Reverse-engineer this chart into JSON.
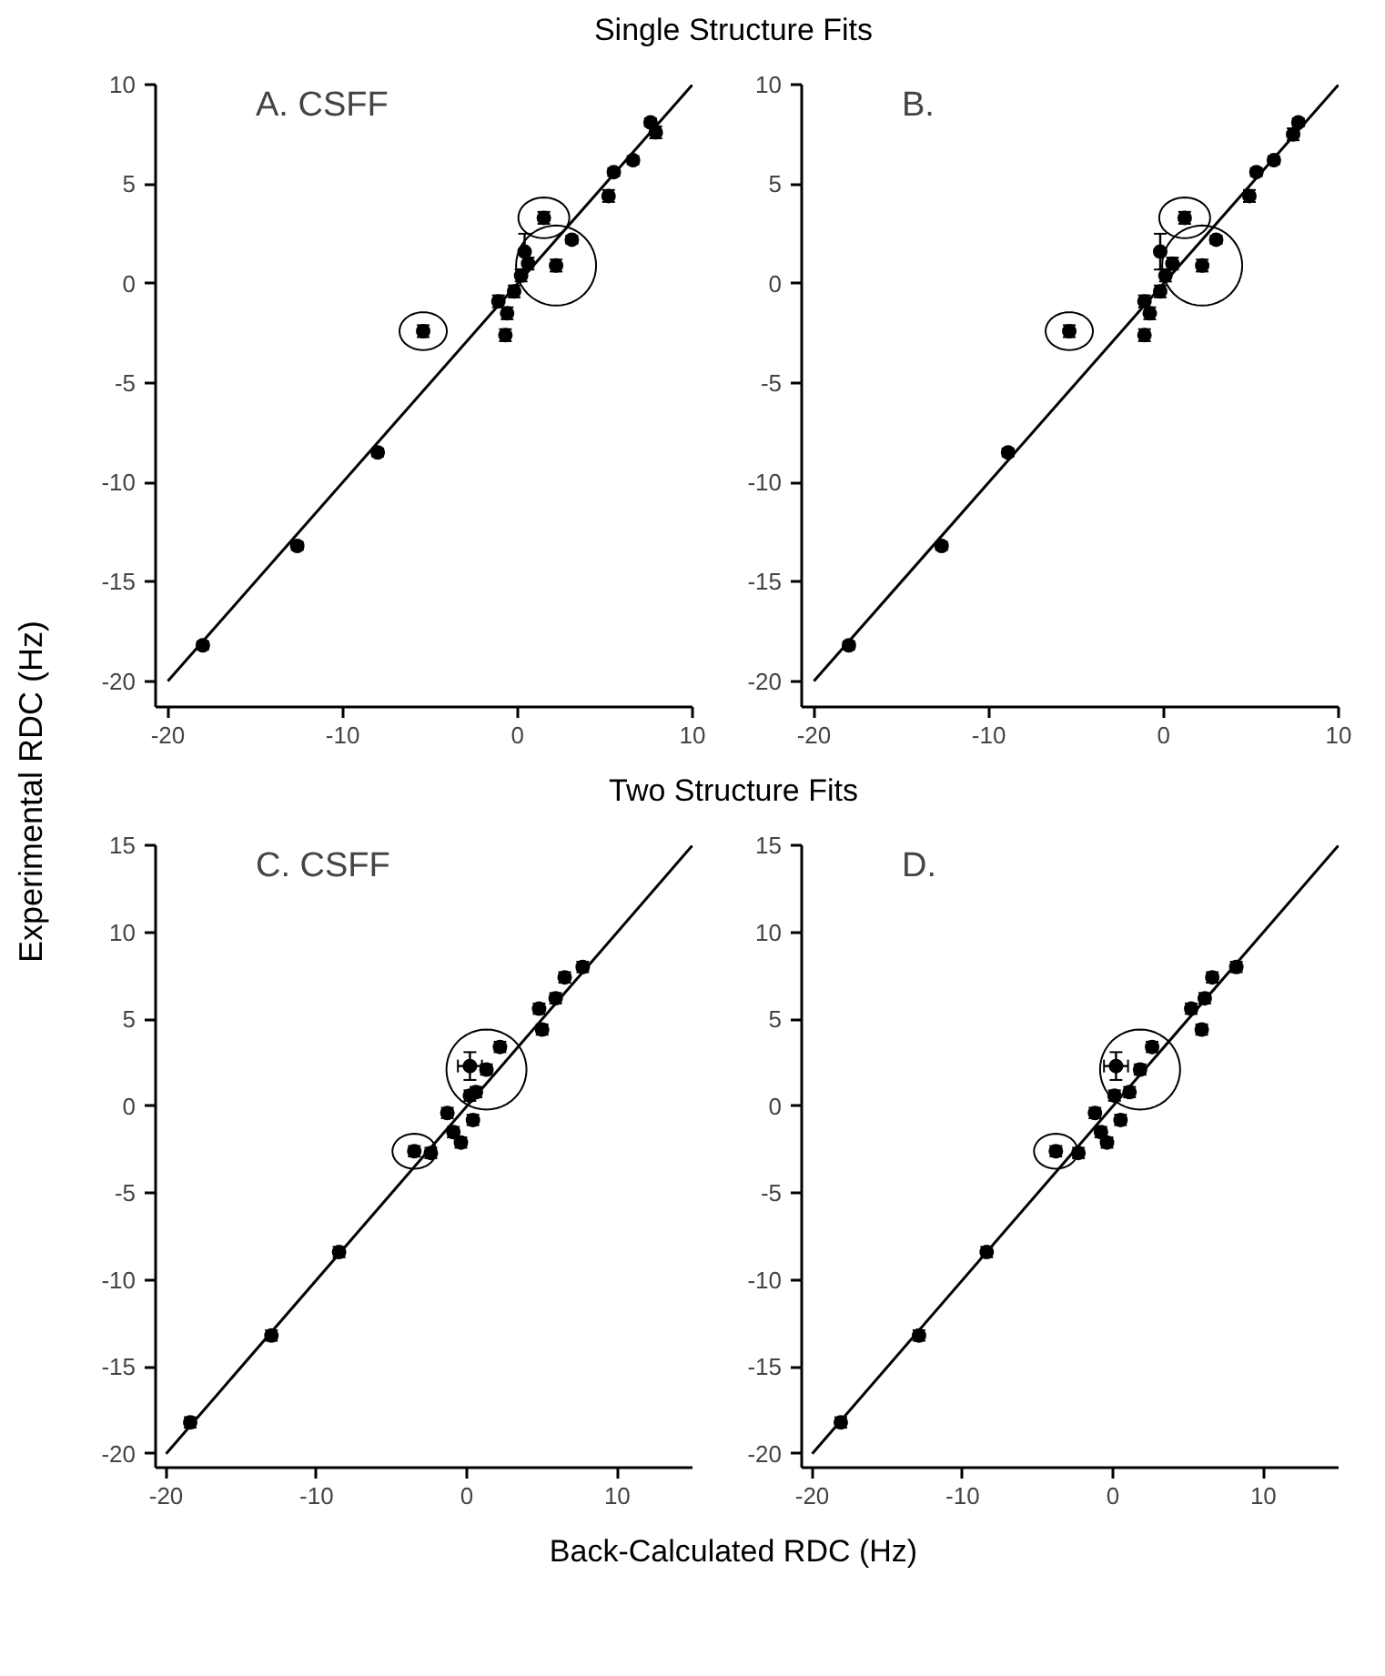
{
  "chart_data": [
    {
      "type": "scatter",
      "title": "Single Structure Fits",
      "ylabel": "Experimental RDC (Hz)",
      "annotations": [
        "A. CSFF"
      ],
      "marker": "circle",
      "xlim": [
        -20.7,
        10
      ],
      "ylim": [
        -21.3,
        10
      ],
      "xticks": [
        -20,
        -10,
        0,
        10
      ],
      "yticks": [
        -20,
        -15,
        -10,
        -5,
        0,
        5,
        10
      ],
      "series": [
        {
          "color": "#000000",
          "x": [
            -18,
            -12.6,
            -8.0,
            -5.4,
            -1.1,
            -0.7,
            -0.6,
            -0.2,
            0.2,
            0.6,
            0.4,
            1.5,
            2.2,
            3.1,
            5.2,
            5.5,
            6.6,
            7.9,
            7.6
          ],
          "values": [
            -18.2,
            -13.2,
            -8.5,
            -2.4,
            -0.9,
            -2.6,
            -1.5,
            -0.4,
            0.4,
            1.0,
            1.6,
            3.3,
            0.9,
            2.2,
            4.4,
            5.6,
            6.2,
            7.6,
            8.1
          ],
          "errors": [
            0.2,
            0.2,
            0.2,
            0.3,
            0.3,
            0.3,
            0.3,
            0.3,
            0.3,
            0.3,
            0.9,
            0.3,
            0.3,
            0.2,
            0.3,
            0.2,
            0.2,
            0.3,
            0.2
          ]
        },
        {
          "type": "line",
          "marker": "none",
          "color": "#000000",
          "x": [
            -20,
            10
          ],
          "values": [
            -20,
            10
          ]
        }
      ]
    },
    {
      "type": "scatter",
      "annotations": [
        "B."
      ],
      "marker": "circle",
      "xlim": [
        -20.7,
        10
      ],
      "ylim": [
        -21.3,
        10
      ],
      "xticks": [
        -20,
        -10,
        0,
        10
      ],
      "yticks": [
        -20,
        -15,
        -10,
        -5,
        0,
        5,
        10
      ],
      "series": [
        {
          "color": "#000000",
          "x": [
            -18,
            -12.7,
            -8.9,
            -5.4,
            -1.1,
            -1.1,
            -0.8,
            -0.2,
            0.1,
            0.5,
            -0.2,
            1.2,
            2.2,
            3.0,
            4.9,
            5.3,
            6.3,
            7.4,
            7.7
          ],
          "values": [
            -18.2,
            -13.2,
            -8.5,
            -2.4,
            -0.9,
            -2.6,
            -1.5,
            -0.4,
            0.4,
            1.0,
            1.6,
            3.3,
            0.9,
            2.2,
            4.4,
            5.6,
            6.2,
            7.5,
            8.1
          ],
          "errors": [
            0.2,
            0.2,
            0.2,
            0.3,
            0.3,
            0.3,
            0.3,
            0.3,
            0.3,
            0.3,
            0.9,
            0.3,
            0.3,
            0.2,
            0.3,
            0.2,
            0.2,
            0.3,
            0.2
          ]
        },
        {
          "type": "line",
          "marker": "none",
          "color": "#000000",
          "x": [
            -20,
            10
          ],
          "values": [
            -20,
            10
          ]
        }
      ]
    },
    {
      "type": "scatter",
      "title": "Two Structure Fits",
      "xlabel": "Back-Calculated RDC (Hz)",
      "annotations": [
        "C. CSFF"
      ],
      "marker": "circle",
      "xlim": [
        -20.7,
        15
      ],
      "ylim": [
        -20.8,
        15
      ],
      "xticks": [
        -20,
        -10,
        0,
        10
      ],
      "yticks": [
        -20,
        -15,
        -10,
        -5,
        0,
        5,
        10,
        15
      ],
      "series": [
        {
          "color": "#000000",
          "x": [
            -18.4,
            -13.0,
            -8.5,
            -3.5,
            -2.4,
            -1.3,
            -0.9,
            -0.4,
            0.2,
            0.4,
            0.6,
            0.2,
            1.3,
            2.2,
            5.0,
            4.8,
            5.9,
            6.5,
            7.7
          ],
          "values": [
            -18.2,
            -13.2,
            -8.4,
            -2.6,
            -2.7,
            -0.4,
            -1.5,
            -2.1,
            0.6,
            -0.8,
            0.8,
            2.3,
            2.1,
            3.4,
            4.4,
            5.6,
            6.2,
            7.4,
            8.0
          ],
          "errors": [
            0.3,
            0.3,
            0.3,
            0.3,
            0.3,
            0.3,
            0.3,
            0.3,
            0.3,
            0.3,
            0.3,
            0.8,
            0.3,
            0.3,
            0.3,
            0.3,
            0.3,
            0.3,
            0.3
          ],
          "xerrors": [
            null,
            null,
            null,
            null,
            null,
            null,
            null,
            null,
            null,
            null,
            null,
            0.8,
            null,
            null,
            null,
            null,
            null,
            null,
            null
          ]
        },
        {
          "type": "line",
          "marker": "none",
          "color": "#000000",
          "x": [
            -20,
            15
          ],
          "values": [
            -20,
            15
          ]
        }
      ]
    },
    {
      "type": "scatter",
      "annotations": [
        "D."
      ],
      "marker": "circle",
      "xlim": [
        -20.7,
        15
      ],
      "ylim": [
        -20.8,
        15
      ],
      "xticks": [
        -20,
        -10,
        0,
        10
      ],
      "yticks": [
        -20,
        -15,
        -10,
        -5,
        0,
        5,
        10,
        15
      ],
      "series": [
        {
          "color": "#000000",
          "x": [
            -18.1,
            -12.9,
            -8.4,
            -3.8,
            -2.3,
            -1.2,
            -0.8,
            -0.4,
            0.1,
            0.5,
            1.1,
            0.2,
            1.8,
            2.6,
            5.9,
            5.2,
            6.1,
            6.6,
            8.2
          ],
          "values": [
            -18.2,
            -13.2,
            -8.4,
            -2.6,
            -2.7,
            -0.4,
            -1.5,
            -2.1,
            0.6,
            -0.8,
            0.8,
            2.3,
            2.1,
            3.4,
            4.4,
            5.6,
            6.2,
            7.4,
            8.0
          ],
          "errors": [
            0.3,
            0.3,
            0.3,
            0.3,
            0.3,
            0.3,
            0.3,
            0.3,
            0.3,
            0.3,
            0.3,
            0.8,
            0.3,
            0.3,
            0.3,
            0.3,
            0.3,
            0.3,
            0.3
          ],
          "xerrors": [
            null,
            null,
            null,
            null,
            null,
            null,
            null,
            null,
            null,
            null,
            null,
            0.8,
            null,
            null,
            null,
            null,
            null,
            null,
            null
          ]
        },
        {
          "type": "line",
          "marker": "none",
          "color": "#000000",
          "x": [
            -20,
            15
          ],
          "values": [
            -20,
            15
          ]
        }
      ]
    }
  ]
}
